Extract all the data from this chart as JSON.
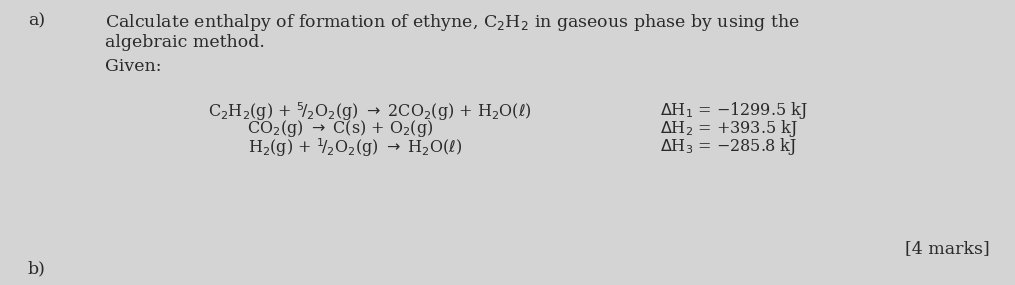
{
  "bg_color": "#d4d4d4",
  "text_color": "#2a2a2a",
  "label_a": "a)",
  "title_line1": "Calculate enthalpy of formation of ethyne, C$_2$H$_2$ in gaseous phase by using the",
  "title_line2": "algebraic method.",
  "given_label": "Given:",
  "eq1": "C$_2$H$_2$(g) + $^5\\!/_2$O$_2$(g) $\\rightarrow$ 2CO$_2$(g) + H$_2$O($\\ell$)",
  "eq2": "CO$_2$(g) $\\rightarrow$ C(s) + O$_2$(g)",
  "eq3": "H$_2$(g) + $^1\\!/_2$O$_2$(g) $\\rightarrow$ H$_2$O($\\ell$)",
  "dH1": "$\\Delta$H$_1$ = −1299.5 kJ",
  "dH2": "$\\Delta$H$_2$ = +393.5 kJ",
  "dH3": "$\\Delta$H$_3$ = −285.8 kJ",
  "marks": "[4 marks]",
  "label_b": "b)",
  "fs_main": 12.5,
  "fs_eq": 11.5
}
